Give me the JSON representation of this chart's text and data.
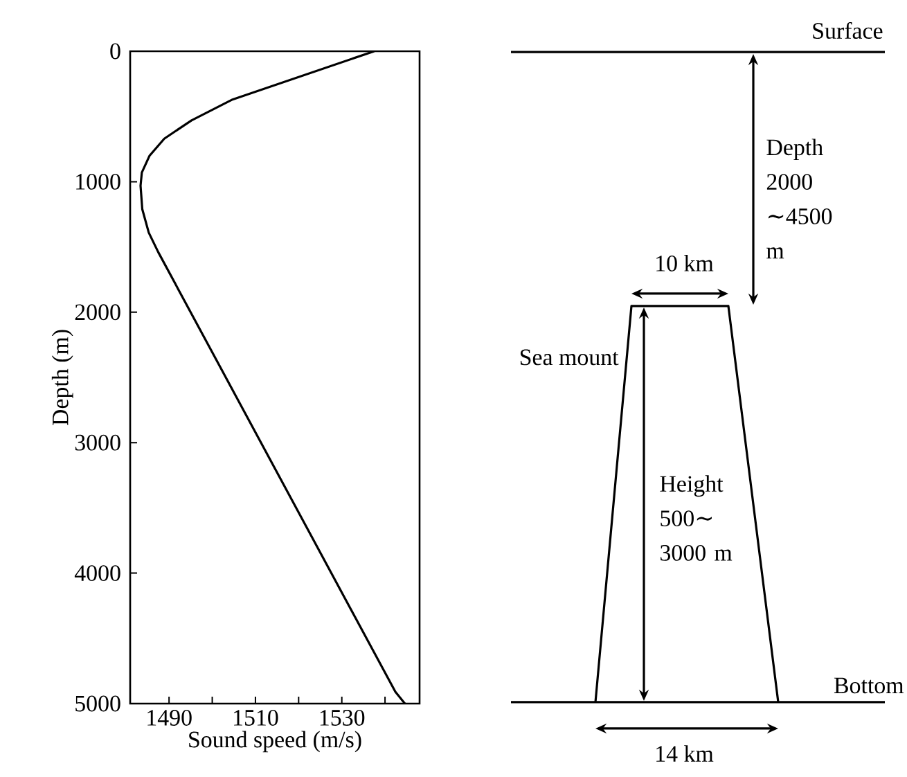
{
  "chart_data": {
    "type": "line",
    "xlabel": "Sound speed (m/s)",
    "ylabel": "Depth (m)",
    "x": [
      1537.5,
      1504.7,
      1495.2,
      1488.9,
      1485.5,
      1483.7,
      1483.4,
      1483.8,
      1485.3,
      1487.5,
      1542.4,
      1544.6
    ],
    "values": [
      0,
      370,
      530,
      670,
      800,
      930,
      1030,
      1210,
      1390,
      1540,
      4910,
      5000
    ],
    "color": "#000000",
    "marker": "none",
    "line_style": "solid",
    "xlim": [
      1481,
      1548
    ],
    "xticks": [
      1490,
      {
        "value": 1500,
        "label": null
      },
      1510,
      {
        "value": 1520,
        "label": null
      },
      1530,
      {
        "value": 1540,
        "label": null
      }
    ],
    "ylim": [
      5000,
      0
    ],
    "yticks": [
      0,
      1000,
      2000,
      3000,
      4000,
      5000
    ],
    "annotations": [
      "Surface",
      "Depth 2000 ∼4500 m",
      "10 km",
      "Sea mount",
      "Height 500∼ 3000 m",
      "Bottom",
      "14 km"
    ]
  }
}
